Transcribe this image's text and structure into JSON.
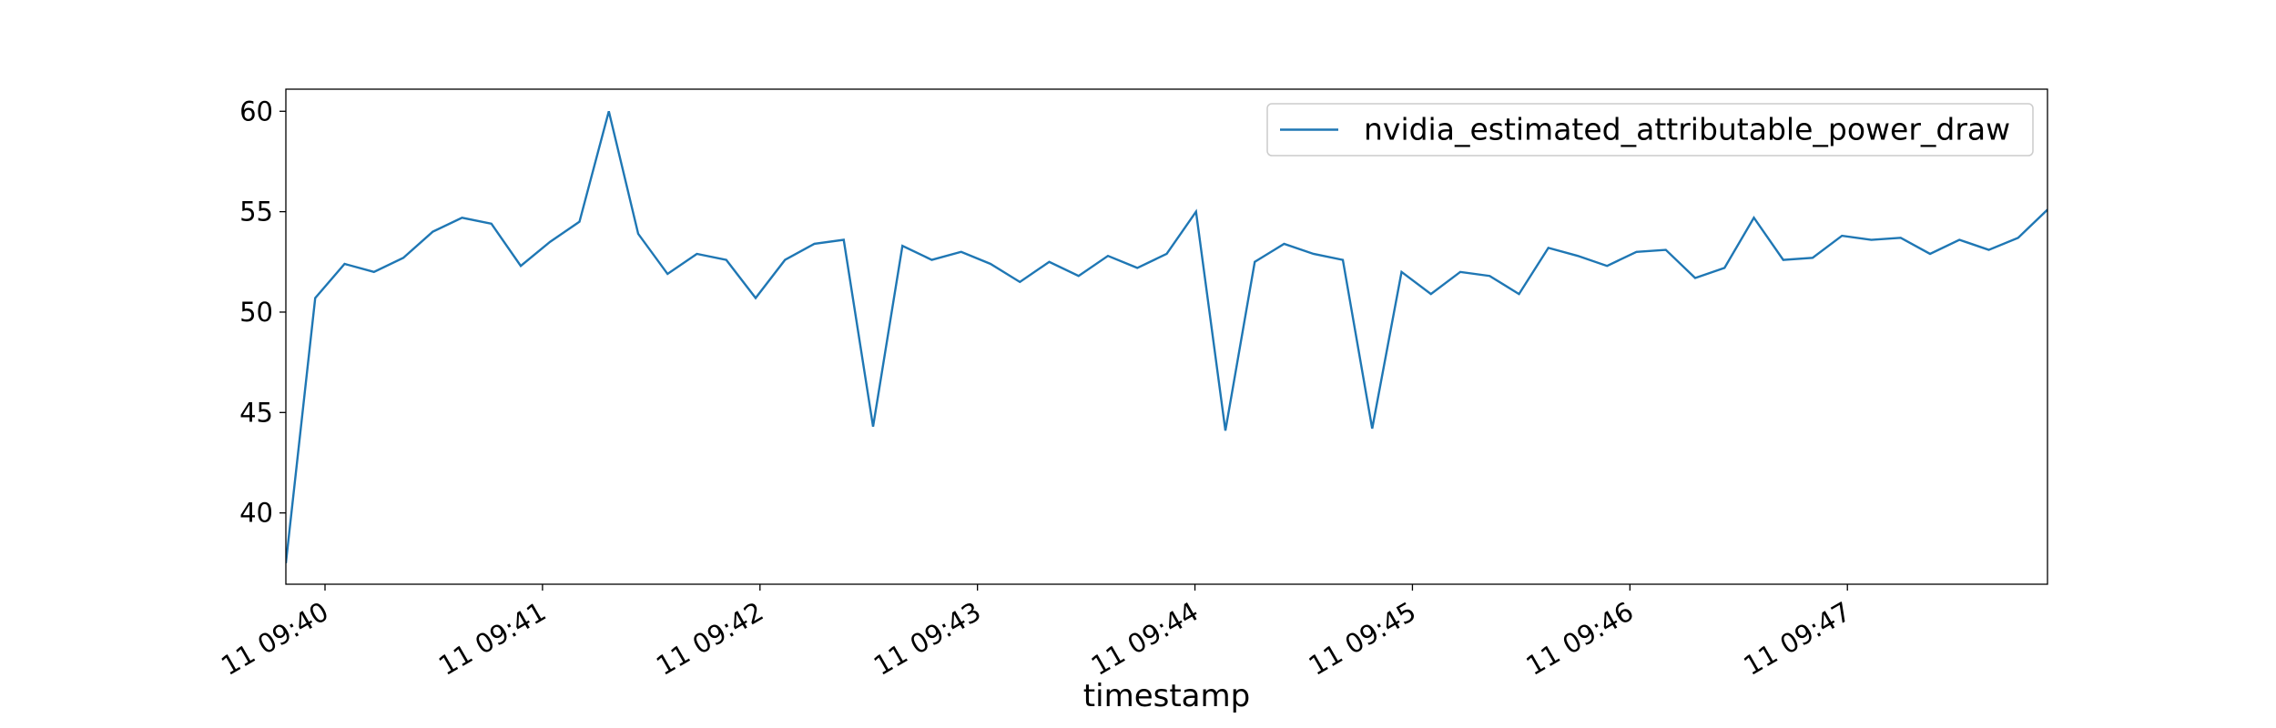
{
  "chart_data": {
    "type": "line",
    "xlabel": "timestamp",
    "x": [
      39.82,
      39.955,
      40.09,
      40.225,
      40.36,
      40.495,
      40.63,
      40.765,
      40.9,
      41.035,
      41.17,
      41.305,
      41.44,
      41.575,
      41.71,
      41.845,
      41.98,
      42.115,
      42.25,
      42.385,
      42.52,
      42.655,
      42.79,
      42.925,
      43.06,
      43.195,
      43.33,
      43.465,
      43.6,
      43.735,
      43.87,
      44.005,
      44.14,
      44.275,
      44.41,
      44.545,
      44.68,
      44.815,
      44.95,
      45.085,
      45.22,
      45.355,
      45.49,
      45.625,
      45.76,
      45.895,
      46.03,
      46.165,
      46.3,
      46.435,
      46.57,
      46.705,
      46.84,
      46.975,
      47.11,
      47.245,
      47.38,
      47.515,
      47.65,
      47.785,
      47.92
    ],
    "series": [
      {
        "name": "nvidia_estimated_attributable_power_draw",
        "color": "#1f77b4",
        "values": [
          37.5,
          50.7,
          52.4,
          52.0,
          52.7,
          54.0,
          54.7,
          54.4,
          52.3,
          53.5,
          54.5,
          60.0,
          53.9,
          51.9,
          52.9,
          52.6,
          50.7,
          52.6,
          53.4,
          53.6,
          44.3,
          53.3,
          52.6,
          53.0,
          52.4,
          51.5,
          52.5,
          51.8,
          52.8,
          52.2,
          52.9,
          55.0,
          44.1,
          52.5,
          53.4,
          52.9,
          52.6,
          44.2,
          52.0,
          50.9,
          52.0,
          51.8,
          50.9,
          53.2,
          52.8,
          52.3,
          53.0,
          53.1,
          51.7,
          52.2,
          54.7,
          52.6,
          52.7,
          53.8,
          53.6,
          53.7,
          52.9,
          53.6,
          53.1,
          53.7,
          55.1
        ]
      }
    ],
    "xlim": [
      39.82,
      47.92
    ],
    "xticks": [
      {
        "value": 40,
        "label": "11 09:40"
      },
      {
        "value": 41,
        "label": "11 09:41"
      },
      {
        "value": 42,
        "label": "11 09:42"
      },
      {
        "value": 43,
        "label": "11 09:43"
      },
      {
        "value": 44,
        "label": "11 09:44"
      },
      {
        "value": 45,
        "label": "11 09:45"
      },
      {
        "value": 46,
        "label": "11 09:46"
      },
      {
        "value": 47,
        "label": "11 09:47"
      }
    ],
    "ylim": [
      36.45,
      61.1
    ],
    "yticks": [
      40,
      45,
      50,
      55,
      60
    ],
    "grid": false,
    "legend": "upper right"
  }
}
